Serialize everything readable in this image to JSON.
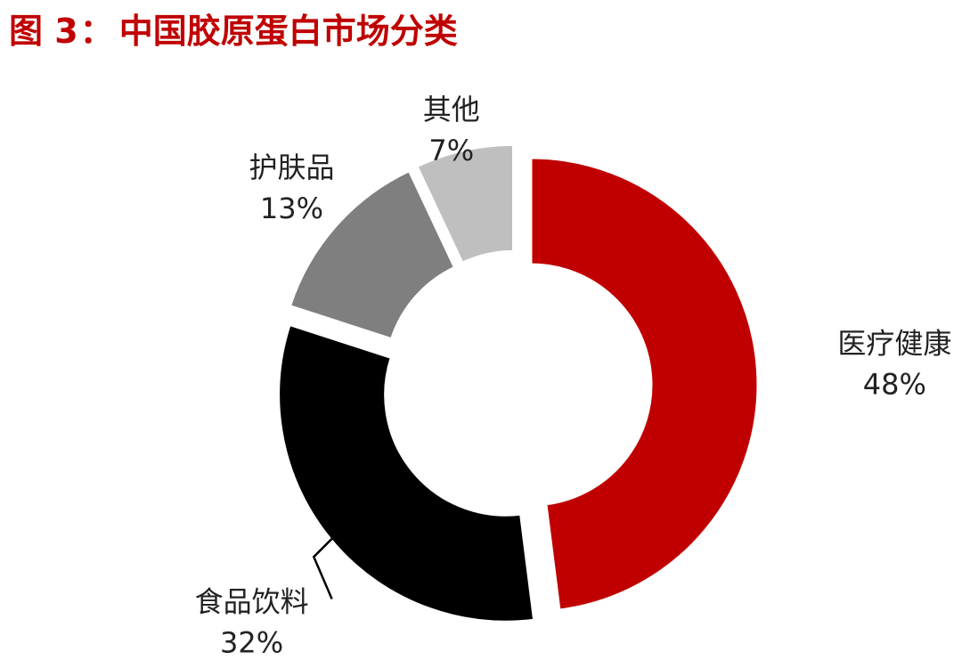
{
  "figure": {
    "number": "图 3",
    "separator": "：",
    "title": "中国胶原蛋白市场分类"
  },
  "chart_data": {
    "type": "pie",
    "variant": "donut",
    "categories": [
      "医疗健康",
      "食品饮料",
      "护肤品",
      "其他"
    ],
    "values": [
      48,
      32,
      13,
      7
    ],
    "value_labels": [
      "48%",
      "32%",
      "13%",
      "7%"
    ],
    "colors": [
      "#c00000",
      "#000000",
      "#7f7f7f",
      "#bfbfbf"
    ],
    "slices_exploded": true,
    "legend": "none"
  }
}
